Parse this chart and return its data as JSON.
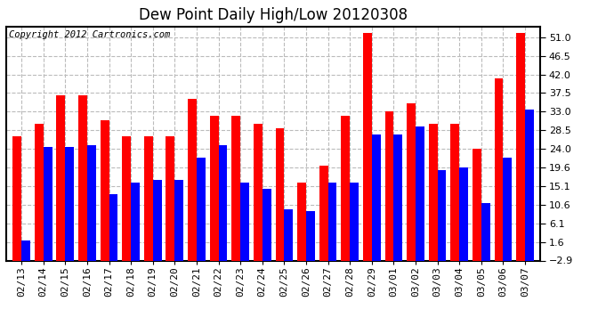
{
  "title": "Dew Point Daily High/Low 20120308",
  "copyright": "Copyright 2012 Cartronics.com",
  "dates": [
    "02/13",
    "02/14",
    "02/15",
    "02/16",
    "02/17",
    "02/18",
    "02/19",
    "02/20",
    "02/21",
    "02/22",
    "02/23",
    "02/24",
    "02/25",
    "02/26",
    "02/27",
    "02/28",
    "02/29",
    "03/01",
    "03/02",
    "03/03",
    "03/04",
    "03/05",
    "03/06",
    "03/07"
  ],
  "highs": [
    27.0,
    30.0,
    37.0,
    37.0,
    31.0,
    27.0,
    27.0,
    27.0,
    36.0,
    32.0,
    32.0,
    30.0,
    29.0,
    16.0,
    20.0,
    32.0,
    52.0,
    33.0,
    35.0,
    30.0,
    30.0,
    24.0,
    41.0,
    52.0
  ],
  "lows": [
    2.0,
    24.5,
    24.5,
    25.0,
    13.0,
    16.0,
    16.5,
    16.5,
    22.0,
    25.0,
    16.0,
    14.5,
    9.5,
    9.0,
    16.0,
    16.0,
    27.5,
    27.5,
    29.5,
    19.0,
    19.5,
    11.0,
    22.0,
    33.5
  ],
  "high_color": "#ff0000",
  "low_color": "#0000ff",
  "bg_color": "#ffffff",
  "plot_bg": "#ffffff",
  "yticks": [
    -2.9,
    1.6,
    6.1,
    10.6,
    15.1,
    19.6,
    24.0,
    28.5,
    33.0,
    37.5,
    42.0,
    46.5,
    51.0
  ],
  "ymin": -2.9,
  "ymax": 53.5,
  "grid_color": "#bbbbbb",
  "title_fontsize": 12,
  "copyright_fontsize": 7.5,
  "tick_fontsize": 8,
  "bar_width": 0.4
}
